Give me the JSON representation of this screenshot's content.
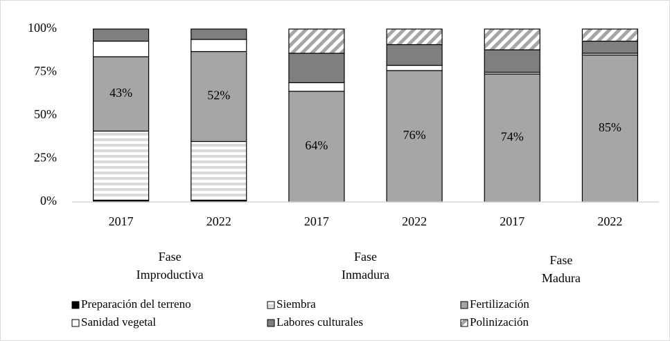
{
  "chart_data": {
    "type": "stacked_bar",
    "categories": [
      "2017",
      "2022",
      "2017",
      "2022",
      "2017",
      "2022"
    ],
    "groups": [
      {
        "lines": [
          "Fase",
          "Improductiva"
        ]
      },
      {
        "lines": [
          "Fase",
          "Inmadura"
        ]
      },
      {
        "lines": [
          "Fase",
          "Madura"
        ]
      }
    ],
    "series": [
      {
        "name": "Preparación del terreno",
        "color": "#000000",
        "values": [
          1,
          1,
          0,
          0,
          0,
          0
        ]
      },
      {
        "name": "Siembra",
        "color": "#d9d9d9",
        "pattern": "horizontal",
        "values": [
          40,
          34,
          0,
          0,
          0,
          0
        ]
      },
      {
        "name": "Fertilización",
        "color": "#a6a6a6",
        "values": [
          43,
          52,
          64,
          76,
          74,
          85
        ],
        "value_labels": [
          "43%",
          "52%",
          "64%",
          "76%",
          "74%",
          "85%"
        ]
      },
      {
        "name": "Sanidad vegetal",
        "color": "#ffffff",
        "values": [
          9,
          7,
          5,
          3,
          1,
          1
        ]
      },
      {
        "name": "Labores culturales",
        "color": "#7f7f7f",
        "values": [
          7,
          6,
          17,
          12,
          13,
          7
        ]
      },
      {
        "name": "Polinización",
        "color": "#a6a6a6",
        "pattern": "diagonal",
        "values": [
          0,
          0,
          14,
          9,
          12,
          7
        ]
      }
    ],
    "ylim": [
      0,
      100
    ],
    "yticks": [
      {
        "value": 0,
        "label": "0%"
      },
      {
        "value": 25,
        "label": "25%"
      },
      {
        "value": 50,
        "label": "50%"
      },
      {
        "value": 75,
        "label": "75%"
      },
      {
        "value": 100,
        "label": "100%"
      }
    ],
    "grid": false,
    "legend": "bottom"
  }
}
